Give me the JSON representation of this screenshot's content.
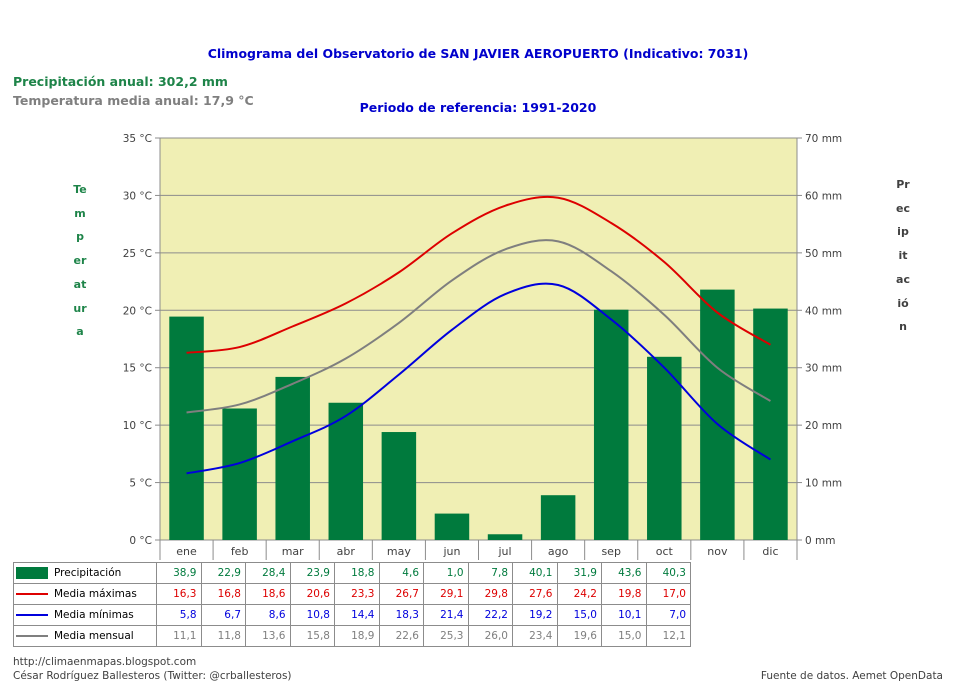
{
  "header": {
    "title": "Climograma del Observatorio de SAN JAVIER AEROPUERTO (Indicativo: 7031)",
    "subtitle": "Periodo de referencia: 1991-2020",
    "annual_precip": "Precipitación anual: 302,2 mm",
    "annual_temp": "Temperatura media anual: 17,9 °C"
  },
  "chart_data": {
    "type": "bar",
    "categories": [
      "ene",
      "feb",
      "mar",
      "abr",
      "may",
      "jun",
      "jul",
      "ago",
      "sep",
      "oct",
      "nov",
      "dic"
    ],
    "ylabel_left": "Temperatura",
    "ylabel_right": "Precipitación",
    "ylim_left": [
      0,
      35
    ],
    "ylim_right": [
      0,
      70
    ],
    "yticks_left": [
      "0 °C",
      "5 °C",
      "10 °C",
      "15 °C",
      "20 °C",
      "25 °C",
      "30 °C",
      "35 °C"
    ],
    "yticks_right": [
      "0 mm",
      "10 mm",
      "20 mm",
      "30 mm",
      "40 mm",
      "50 mm",
      "60 mm",
      "70 mm"
    ],
    "grid": true,
    "plot_background": "#f0efb4",
    "series": [
      {
        "name": "Precipitación",
        "kind": "bar",
        "axis": "right",
        "color": "#007a3d",
        "values": [
          38.9,
          22.9,
          28.4,
          23.9,
          18.8,
          4.6,
          1.0,
          7.8,
          40.1,
          31.9,
          43.6,
          40.3
        ],
        "labels": [
          "38,9",
          "22,9",
          "28,4",
          "23,9",
          "18,8",
          "4,6",
          "1,0",
          "7,8",
          "40,1",
          "31,9",
          "43,6",
          "40,3"
        ]
      },
      {
        "name": "Media máximas",
        "kind": "line",
        "axis": "left",
        "color": "#dd0000",
        "values": [
          16.3,
          16.8,
          18.6,
          20.6,
          23.3,
          26.7,
          29.1,
          29.8,
          27.6,
          24.2,
          19.8,
          17.0
        ],
        "labels": [
          "16,3",
          "16,8",
          "18,6",
          "20,6",
          "23,3",
          "26,7",
          "29,1",
          "29,8",
          "27,6",
          "24,2",
          "19,8",
          "17,0"
        ]
      },
      {
        "name": "Media mínimas",
        "kind": "line",
        "axis": "left",
        "color": "#0000dd",
        "values": [
          5.8,
          6.7,
          8.6,
          10.8,
          14.4,
          18.3,
          21.4,
          22.2,
          19.2,
          15.0,
          10.1,
          7.0
        ],
        "labels": [
          "5,8",
          "6,7",
          "8,6",
          "10,8",
          "14,4",
          "18,3",
          "21,4",
          "22,2",
          "19,2",
          "15,0",
          "10,1",
          "7,0"
        ]
      },
      {
        "name": "Media mensual",
        "kind": "line",
        "axis": "left",
        "color": "#7f7f7f",
        "values": [
          11.1,
          11.8,
          13.6,
          15.8,
          18.9,
          22.6,
          25.3,
          26.0,
          23.4,
          19.6,
          15.0,
          12.1
        ],
        "labels": [
          "11,1",
          "11,8",
          "13,6",
          "15,8",
          "18,9",
          "22,6",
          "25,3",
          "26,0",
          "23,4",
          "19,6",
          "15,0",
          "12,1"
        ]
      }
    ]
  },
  "footer": {
    "url": "http://climaenmapas.blogspot.com",
    "author": "César Rodríguez Ballesteros (Twitter: @crballesteros)",
    "source": "Fuente de datos. Aemet OpenData"
  }
}
